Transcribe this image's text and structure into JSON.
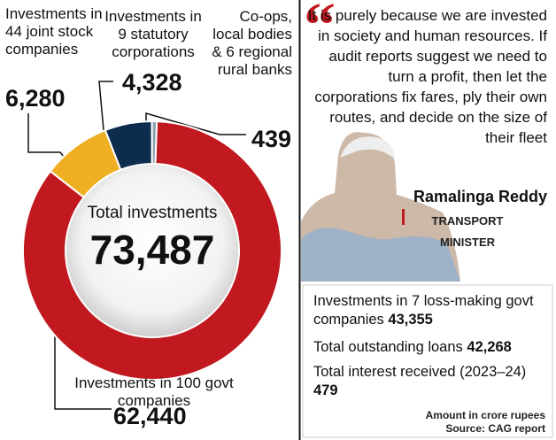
{
  "chart_data": {
    "type": "pie",
    "donut": true,
    "categories": [
      "Investments in 100 govt companies",
      "Investments in 44 joint stock companies",
      "Investments in 9 statutory corporations",
      "Co-ops, local bodies & 6 regional rural banks"
    ],
    "values": [
      62440,
      6280,
      4328,
      439
    ],
    "value_labels": [
      "62,440",
      "6,280",
      "4,328",
      "439"
    ],
    "colors": [
      "#c1191f",
      "#eeb022",
      "#0e2c4d",
      "#8c9eae"
    ],
    "center_title": "Total investments",
    "center_value": "73,487"
  },
  "quote": {
    "text": "It is purely because we are invested in society and human resources. If audit reports suggest we need to turn a profit, then let the corporations fix fares, ply their own routes, and decide on the size of their fleet",
    "name": "Ramalinga Reddy",
    "role": "TRANSPORT MINISTER"
  },
  "stats": [
    {
      "label": "Investments in 7 loss-making govt companies",
      "value": "43,355"
    },
    {
      "label": "Total outstanding loans",
      "value": "42,268"
    },
    {
      "label": "Total interest received (2023–24)",
      "value": "479"
    }
  ],
  "footer": {
    "unit": "Amount in crore rupees",
    "source": "Source: CAG report"
  }
}
